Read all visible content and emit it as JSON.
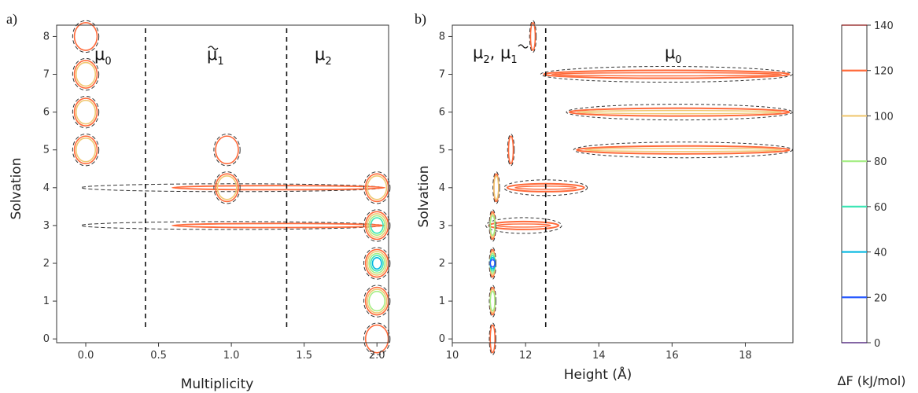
{
  "panels": {
    "a": {
      "label": "a)",
      "xlabel": "Multiplicity",
      "ylabel": "Solvation",
      "regions": [
        {
          "base": "μ",
          "sub": "0",
          "tilde": false
        },
        {
          "base": "μ",
          "sub": "1",
          "tilde": true
        },
        {
          "base": "μ",
          "sub": "2",
          "tilde": false
        }
      ]
    },
    "b": {
      "label": "b)",
      "xlabel": "Height (Å)",
      "ylabel": "Solvation",
      "regions": [
        {
          "text": "μ",
          "sub1": "2",
          "mid": ", μ",
          "sub2": "1"
        },
        {
          "base": "μ",
          "sub": "0",
          "tilde": false
        }
      ]
    }
  },
  "colorbar": {
    "label": "ΔF (kJ/mol)",
    "ticks": [
      "0",
      "20",
      "40",
      "60",
      "80",
      "100",
      "120",
      "140"
    ]
  },
  "chart_data": [
    {
      "type": "contour",
      "panel": "a",
      "xlabel": "Multiplicity",
      "ylabel": "Solvation",
      "xlim": [
        -0.2,
        2.08
      ],
      "ylim": [
        -0.1,
        8.3
      ],
      "xticks": [
        "0.0",
        "0.5",
        "1.0",
        "1.5",
        "2.0"
      ],
      "yticks": [
        "0",
        "1",
        "2",
        "3",
        "4",
        "5",
        "6",
        "7",
        "8"
      ],
      "dividers_x": [
        0.41,
        1.38
      ],
      "regions": [
        "μ0",
        "μ̃1",
        "μ2"
      ],
      "minima": [
        {
          "x": 0.0,
          "y": 5,
          "dF": 100
        },
        {
          "x": 0.0,
          "y": 6,
          "dF": 100
        },
        {
          "x": 0.0,
          "y": 7,
          "dF": 100
        },
        {
          "x": 0.0,
          "y": 8,
          "dF": 120
        },
        {
          "x": 0.97,
          "y": 4,
          "dF": 100
        },
        {
          "x": 0.97,
          "y": 5,
          "dF": 120
        },
        {
          "x": 2.0,
          "y": 4,
          "dF": 100
        },
        {
          "x": 2.0,
          "y": 3,
          "dF": 60
        },
        {
          "x": 2.0,
          "y": 2,
          "dF": 40
        },
        {
          "x": 2.0,
          "y": 1,
          "dF": 80
        },
        {
          "x": 2.0,
          "y": 0,
          "dF": 120
        }
      ],
      "channels": [
        {
          "y": 4,
          "x": [
            0.0,
            2.0
          ]
        },
        {
          "y": 3,
          "x": [
            0.0,
            2.0
          ]
        }
      ]
    },
    {
      "type": "contour",
      "panel": "b",
      "xlabel": "Height (Å)",
      "ylabel": "Solvation",
      "xlim": [
        10.0,
        19.3
      ],
      "ylim": [
        -0.1,
        8.3
      ],
      "xticks": [
        "10",
        "12",
        "14",
        "16",
        "18"
      ],
      "yticks": [
        "0",
        "1",
        "2",
        "3",
        "4",
        "5",
        "6",
        "7",
        "8"
      ],
      "dividers_x": [
        12.55
      ],
      "regions": [
        "μ2, μ̃1",
        "μ0"
      ],
      "minima": [
        {
          "x": 11.1,
          "y": 2,
          "dF": 20
        },
        {
          "x": 11.1,
          "y": 1,
          "dF": 80
        },
        {
          "x": 11.1,
          "y": 3,
          "dF": 80
        },
        {
          "x": 11.2,
          "y": 4,
          "dF": 100
        },
        {
          "x": 11.6,
          "y": 5,
          "dF": 120
        },
        {
          "x": 11.1,
          "y": 0,
          "dF": 120
        },
        {
          "x": 12.2,
          "y": 8,
          "dF": 120
        }
      ],
      "bands": [
        {
          "y": 7,
          "x": [
            12.5,
            19.2
          ],
          "dF": 120
        },
        {
          "y": 6,
          "x": [
            13.2,
            19.2
          ],
          "dF": 100
        },
        {
          "y": 5,
          "x": [
            13.4,
            19.2
          ],
          "dF": 100
        },
        {
          "y": 4,
          "x": [
            11.5,
            13.6
          ],
          "dF": 120
        },
        {
          "y": 3,
          "x": [
            11.0,
            12.9
          ],
          "dF": 120
        }
      ]
    }
  ]
}
